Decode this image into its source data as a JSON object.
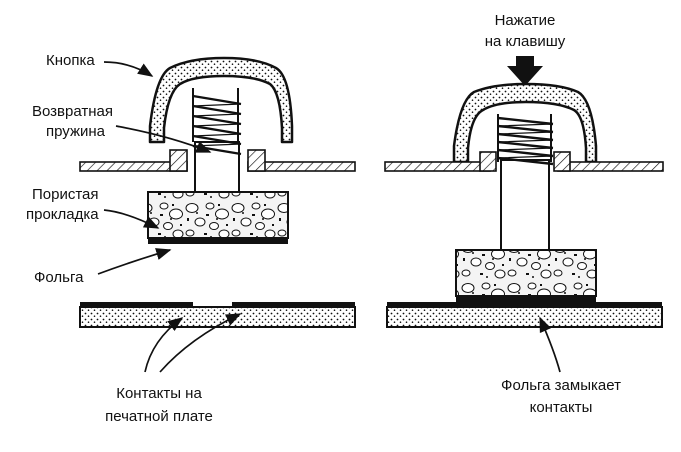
{
  "labels": {
    "button": "Кнопка",
    "spring_line1": "Возвратная",
    "spring_line2": "пружина",
    "pad_line1": "Пористая",
    "pad_line2": "прокладка",
    "foil": "Фольга",
    "press_line1": "Нажатие",
    "press_line2": "на клавишу",
    "contacts_line1": "Контакты на",
    "contacts_line2": "печатной плате",
    "closes_line1": "Фольга замыкает",
    "closes_line2": "контакты"
  },
  "colors": {
    "ink": "#111111",
    "pad_fill": "#f4f4f4",
    "background": "#ffffff"
  },
  "states": {
    "left": "key released — foil separated from board contacts",
    "right": "key pressed — foil touches board contacts"
  }
}
